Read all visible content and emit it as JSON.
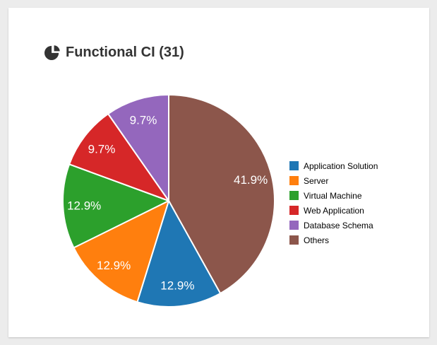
{
  "header": {
    "title": "Functional CI (31)",
    "icon": "pie-chart-icon"
  },
  "colors": {
    "card_background": "#ffffff",
    "page_background": "#ececec",
    "title_text": "#333333",
    "slice_label_text": "#ffffff",
    "slice_separator": "#ffffff"
  },
  "chart_data": {
    "type": "pie",
    "title": "Functional CI (31)",
    "total": 31,
    "legend_position": "right",
    "start_angle": "top",
    "direction": "clockwise",
    "sort": "value-descending",
    "slices": [
      {
        "label": "Application Solution",
        "count": 4,
        "percent": 12.9,
        "percent_label": "12.9%",
        "color": "#1f77b4"
      },
      {
        "label": "Server",
        "count": 4,
        "percent": 12.9,
        "percent_label": "12.9%",
        "color": "#ff7f0e"
      },
      {
        "label": "Virtual Machine",
        "count": 4,
        "percent": 12.9,
        "percent_label": "12.9%",
        "color": "#2ca02c"
      },
      {
        "label": "Web Application",
        "count": 3,
        "percent": 9.7,
        "percent_label": "9.7%",
        "color": "#d62728"
      },
      {
        "label": "Database Schema",
        "count": 3,
        "percent": 9.7,
        "percent_label": "9.7%",
        "color": "#9467bd"
      },
      {
        "label": "Others",
        "count": 13,
        "percent": 41.9,
        "percent_label": "41.9%",
        "color": "#8c564b"
      }
    ]
  }
}
